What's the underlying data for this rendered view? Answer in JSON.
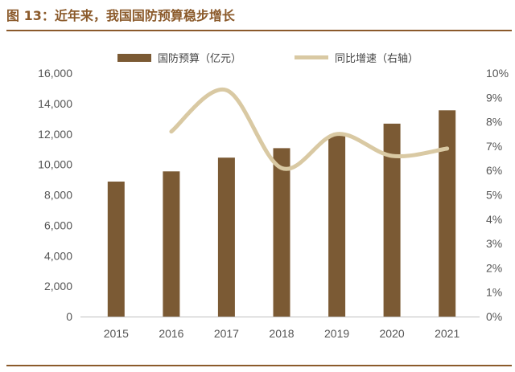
{
  "figure_title": "图 13：近年来，我国国防预算稳步增长",
  "colors": {
    "bar": "#7b5a34",
    "line": "#d9c9a3",
    "accent": "#8b5a2b"
  },
  "chart_data": {
    "type": "bar",
    "categories": [
      "2015",
      "2016",
      "2017",
      "2018",
      "2019",
      "2020",
      "2021"
    ],
    "series": [
      {
        "name": "国防预算（亿元）",
        "type": "bar",
        "axis": "left",
        "values": [
          8869,
          9544,
          10444,
          11070,
          11899,
          12680,
          13553
        ]
      },
      {
        "name": "同比增速（右轴）",
        "type": "line",
        "axis": "right",
        "values": [
          0.076,
          0.093,
          0.061,
          0.075,
          0.066,
          0.069
        ],
        "x": [
          "2016",
          "2017",
          "2018",
          "2019",
          "2020",
          "2021"
        ]
      }
    ],
    "y_left": {
      "ylim": [
        0,
        16000
      ],
      "ticks": [
        "0",
        "2,000",
        "4,000",
        "6,000",
        "8,000",
        "10,000",
        "12,000",
        "14,000",
        "16,000"
      ]
    },
    "y_right": {
      "ylim": [
        0,
        0.1
      ],
      "ticks": [
        "0%",
        "1%",
        "2%",
        "3%",
        "4%",
        "5%",
        "6%",
        "7%",
        "8%",
        "9%",
        "10%"
      ]
    },
    "legend": "top-center",
    "grid": false
  }
}
